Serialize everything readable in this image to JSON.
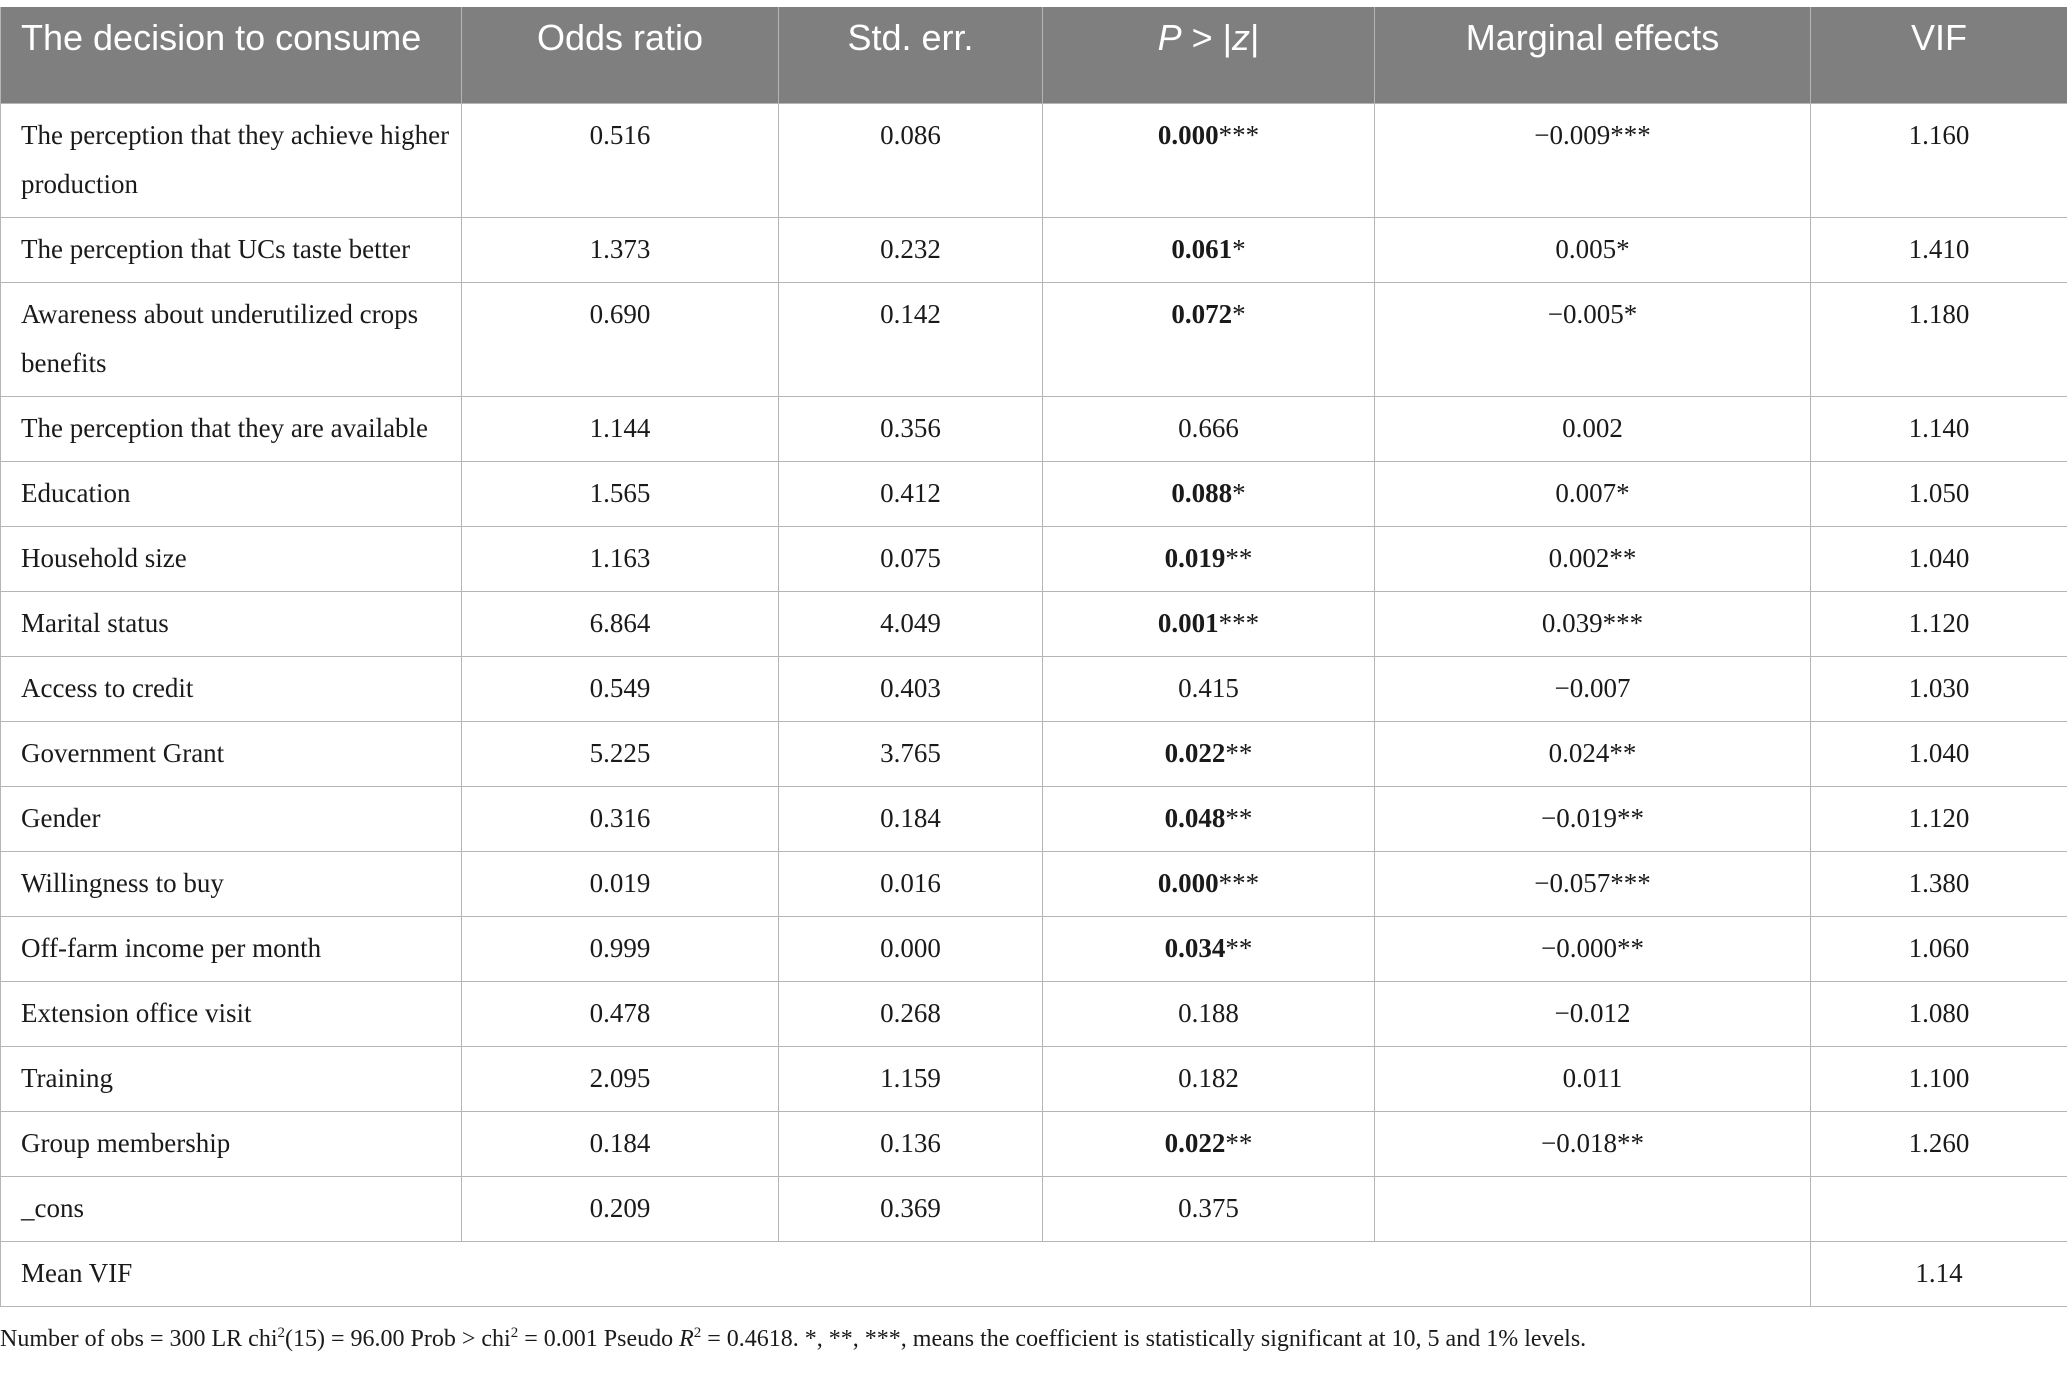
{
  "headers": {
    "variable": "The decision to consume",
    "odds_ratio": "Odds ratio",
    "std_err": "Std. err.",
    "p_prefix": "P",
    "p_middle": " > |",
    "p_z": "z",
    "p_suffix": "|",
    "marginal": "Marginal effects",
    "vif": "VIF"
  },
  "rows": [
    {
      "variable": "The perception that they achieve higher production",
      "odds_ratio": "0.516",
      "std_err": "0.086",
      "p_value": "0.000",
      "p_stars": "***",
      "marginal": "−0.009***",
      "vif": "1.160"
    },
    {
      "variable": "The perception that UCs taste better",
      "odds_ratio": "1.373",
      "std_err": "0.232",
      "p_value": "0.061",
      "p_stars": "*",
      "marginal": "0.005*",
      "vif": "1.410"
    },
    {
      "variable": "Awareness about underutilized crops benefits",
      "odds_ratio": "0.690",
      "std_err": "0.142",
      "p_value": "0.072",
      "p_stars": "*",
      "marginal": "−0.005*",
      "vif": "1.180"
    },
    {
      "variable": "The perception that they are available",
      "odds_ratio": "1.144",
      "std_err": "0.356",
      "p_value": "0.666",
      "p_stars": "",
      "marginal": "0.002",
      "vif": "1.140"
    },
    {
      "variable": "Education",
      "odds_ratio": "1.565",
      "std_err": "0.412",
      "p_value": "0.088",
      "p_stars": "*",
      "marginal": "0.007*",
      "vif": "1.050"
    },
    {
      "variable": "Household size",
      "odds_ratio": "1.163",
      "std_err": "0.075",
      "p_value": "0.019",
      "p_stars": "**",
      "marginal": "0.002**",
      "vif": "1.040"
    },
    {
      "variable": "Marital status",
      "odds_ratio": "6.864",
      "std_err": "4.049",
      "p_value": "0.001",
      "p_stars": "***",
      "marginal": "0.039***",
      "vif": "1.120"
    },
    {
      "variable": "Access to credit",
      "odds_ratio": "0.549",
      "std_err": "0.403",
      "p_value": "0.415",
      "p_stars": "",
      "marginal": "−0.007",
      "vif": "1.030"
    },
    {
      "variable": "Government Grant",
      "odds_ratio": "5.225",
      "std_err": "3.765",
      "p_value": "0.022",
      "p_stars": "**",
      "marginal": "0.024**",
      "vif": "1.040"
    },
    {
      "variable": "Gender",
      "odds_ratio": "0.316",
      "std_err": "0.184",
      "p_value": "0.048",
      "p_stars": "**",
      "marginal": "−0.019**",
      "vif": "1.120"
    },
    {
      "variable": "Willingness to buy",
      "odds_ratio": "0.019",
      "std_err": "0.016",
      "p_value": "0.000",
      "p_stars": "***",
      "marginal": "−0.057***",
      "vif": "1.380"
    },
    {
      "variable": "Off-farm income per month",
      "odds_ratio": "0.999",
      "std_err": "0.000",
      "p_value": "0.034",
      "p_stars": "**",
      "marginal": "−0.000**",
      "vif": "1.060"
    },
    {
      "variable": "Extension office visit",
      "odds_ratio": "0.478",
      "std_err": "0.268",
      "p_value": "0.188",
      "p_stars": "",
      "marginal": "−0.012",
      "vif": "1.080"
    },
    {
      "variable": "Training",
      "odds_ratio": "2.095",
      "std_err": "1.159",
      "p_value": "0.182",
      "p_stars": "",
      "marginal": "0.011",
      "vif": "1.100"
    },
    {
      "variable": "Group membership",
      "odds_ratio": "0.184",
      "std_err": "0.136",
      "p_value": "0.022",
      "p_stars": "**",
      "marginal": "−0.018**",
      "vif": "1.260"
    },
    {
      "variable": "_cons",
      "odds_ratio": "0.209",
      "std_err": "0.369",
      "p_value": "0.375",
      "p_stars": "",
      "marginal": "",
      "vif": ""
    }
  ],
  "mean_vif": {
    "label": "Mean VIF",
    "value": "1.14"
  },
  "note": {
    "t1": "Number of obs = 300 LR chi",
    "sup1": "2",
    "t2": "(15) = 96.00 Prob > chi",
    "sup2": "2",
    "t3": " = 0.001 Pseudo ",
    "r": "R",
    "sup3": "2",
    "t4": " = 0.4618. *, **, ***, means the coefficient is statistically significant at 10, 5 and 1% levels."
  }
}
